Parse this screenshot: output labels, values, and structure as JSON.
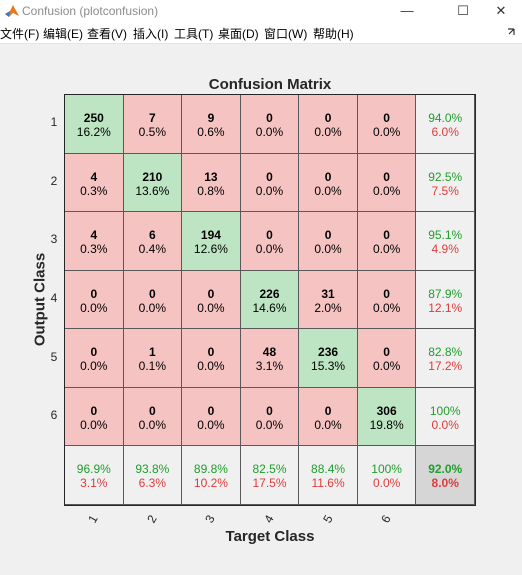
{
  "window": {
    "title": "Confusion (plotconfusion)",
    "minimize": "—",
    "maximize": "☐",
    "close": "✕"
  },
  "menu": [
    {
      "label": "文件(F)"
    },
    {
      "label": "编辑(E)"
    },
    {
      "label": "查看(V)"
    },
    {
      "label": "插入(I)"
    },
    {
      "label": "工具(T)"
    },
    {
      "label": "桌面(D)"
    },
    {
      "label": "窗口(W)"
    },
    {
      "label": "帮助(H)"
    }
  ],
  "colors": {
    "diag": "#bde5c3",
    "off": "#f5c4c2",
    "summary": "#f0f0f0",
    "total": "#d6d6d6",
    "green": "#1f9e2c",
    "red": "#e03b3b"
  },
  "chart_data": {
    "type": "table",
    "title": "Confusion Matrix",
    "xlabel": "Target Class",
    "ylabel": "Output Class",
    "classes": [
      "1",
      "2",
      "3",
      "4",
      "5",
      "6"
    ],
    "counts": [
      [
        250,
        7,
        9,
        0,
        0,
        0
      ],
      [
        4,
        210,
        13,
        0,
        0,
        0
      ],
      [
        4,
        6,
        194,
        0,
        0,
        0
      ],
      [
        0,
        0,
        0,
        226,
        31,
        0
      ],
      [
        0,
        1,
        0,
        48,
        236,
        0
      ],
      [
        0,
        0,
        0,
        0,
        0,
        306
      ]
    ],
    "percents": [
      [
        "16.2%",
        "0.5%",
        "0.6%",
        "0.0%",
        "0.0%",
        "0.0%"
      ],
      [
        "0.3%",
        "13.6%",
        "0.8%",
        "0.0%",
        "0.0%",
        "0.0%"
      ],
      [
        "0.3%",
        "0.4%",
        "12.6%",
        "0.0%",
        "0.0%",
        "0.0%"
      ],
      [
        "0.0%",
        "0.0%",
        "0.0%",
        "14.6%",
        "2.0%",
        "0.0%"
      ],
      [
        "0.0%",
        "0.1%",
        "0.0%",
        "3.1%",
        "15.3%",
        "0.0%"
      ],
      [
        "0.0%",
        "0.0%",
        "0.0%",
        "0.0%",
        "0.0%",
        "19.8%"
      ]
    ],
    "row_summary": [
      [
        "94.0%",
        "6.0%"
      ],
      [
        "92.5%",
        "7.5%"
      ],
      [
        "95.1%",
        "4.9%"
      ],
      [
        "87.9%",
        "12.1%"
      ],
      [
        "82.8%",
        "17.2%"
      ],
      [
        "100%",
        "0.0%"
      ]
    ],
    "col_summary": [
      [
        "96.9%",
        "3.1%"
      ],
      [
        "93.8%",
        "6.3%"
      ],
      [
        "89.8%",
        "10.2%"
      ],
      [
        "82.5%",
        "17.5%"
      ],
      [
        "88.4%",
        "11.6%"
      ],
      [
        "100%",
        "0.0%"
      ]
    ],
    "overall": [
      "92.0%",
      "8.0%"
    ]
  }
}
